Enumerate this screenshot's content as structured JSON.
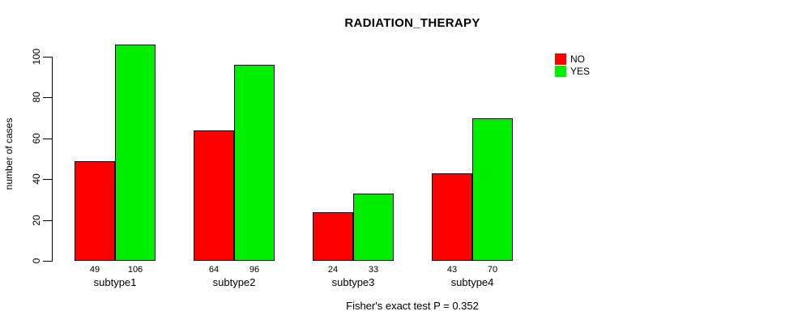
{
  "title": "RADIATION_THERAPY",
  "chart_data": {
    "type": "bar",
    "title": "RADIATION_THERAPY",
    "categories": [
      "subtype1",
      "subtype2",
      "subtype3",
      "subtype4"
    ],
    "series": [
      {
        "name": "NO",
        "color": "#ff0000",
        "values": [
          49,
          64,
          24,
          43
        ]
      },
      {
        "name": "YES",
        "color": "#00ee00",
        "values": [
          106,
          96,
          33,
          70
        ]
      }
    ],
    "xlabel": "",
    "ylabel": "number of cases",
    "ylim": [
      0,
      100
    ],
    "yticks": [
      0,
      20,
      40,
      60,
      80,
      100
    ],
    "grid": false,
    "legend_position": "top-right",
    "bar_value_labels": [
      [
        49,
        106
      ],
      [
        64,
        96
      ],
      [
        24,
        33
      ],
      [
        43,
        70
      ]
    ],
    "annotation": "Fisher's exact test P = 0.352"
  }
}
